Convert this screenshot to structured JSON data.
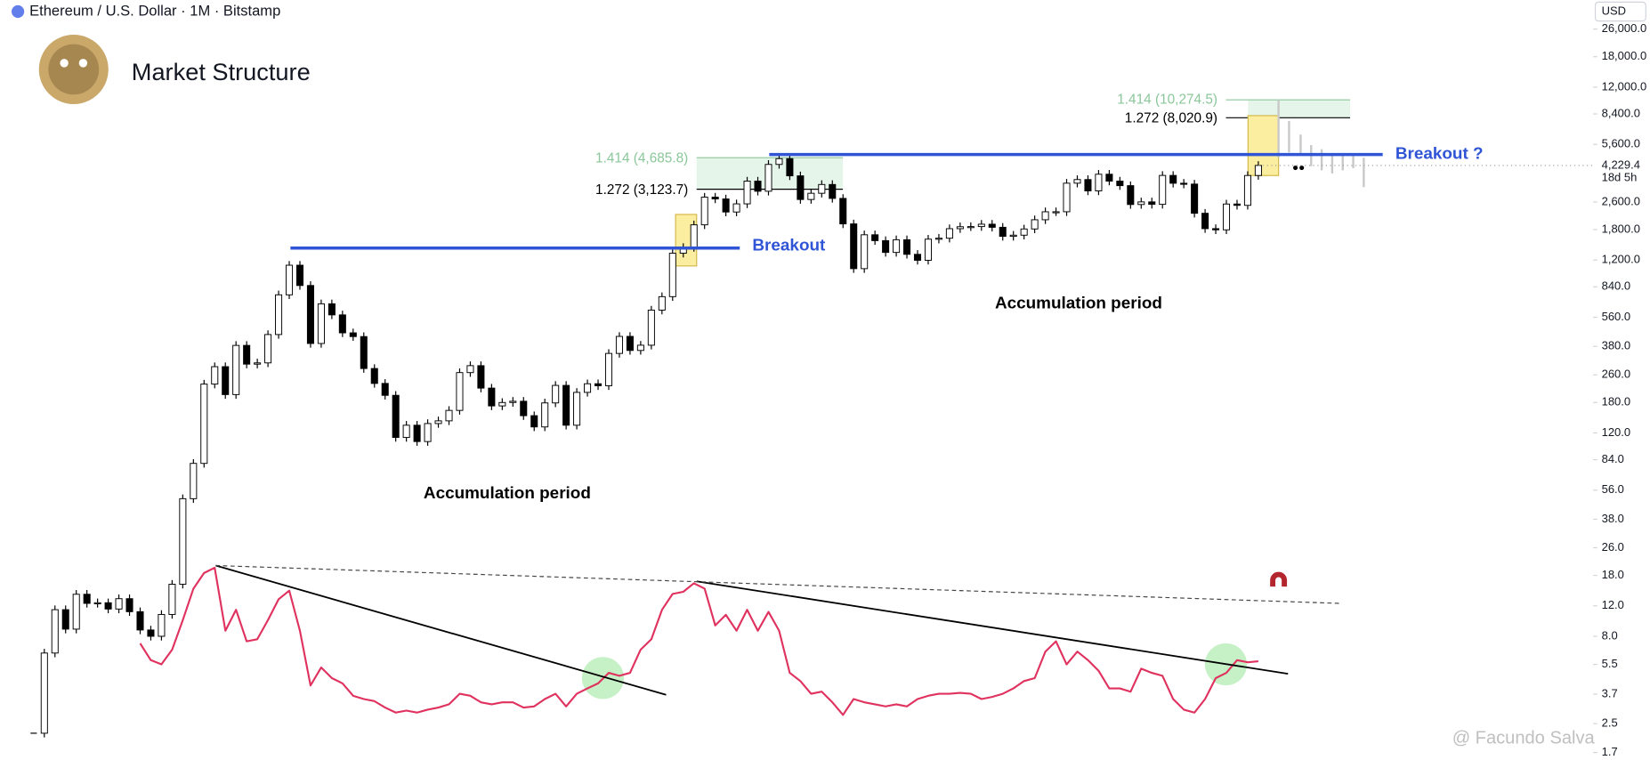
{
  "chart_data": {
    "type": "candlestick",
    "title": "Market Structure",
    "symbol": "Ethereum / U.S. Dollar · 1M · Bitstamp",
    "currency": "USD",
    "log_scale": true,
    "ylim": [
      1.54,
      38300
    ],
    "yticks": [
      {
        "value": 26000,
        "label": "26,000.0"
      },
      {
        "value": 18000,
        "label": "18,000.0"
      },
      {
        "value": 12000,
        "label": "12,000.0"
      },
      {
        "value": 8400,
        "label": "8,400.0"
      },
      {
        "value": 5600,
        "label": "5,600.0"
      },
      {
        "value": 2600,
        "label": "2,600.0"
      },
      {
        "value": 1800,
        "label": "1,800.0"
      },
      {
        "value": 1200,
        "label": "1,200.0"
      },
      {
        "value": 840,
        "label": "840.0"
      },
      {
        "value": 560,
        "label": "560.0"
      },
      {
        "value": 380,
        "label": "380.0"
      },
      {
        "value": 260,
        "label": "260.0"
      },
      {
        "value": 180,
        "label": "180.0"
      },
      {
        "value": 120,
        "label": "120.0"
      },
      {
        "value": 84,
        "label": "84.0"
      },
      {
        "value": 56,
        "label": "56.0"
      },
      {
        "value": 38,
        "label": "38.0"
      },
      {
        "value": 26,
        "label": "26.0"
      },
      {
        "value": 18,
        "label": "18.0"
      },
      {
        "value": 12,
        "label": "12.0"
      },
      {
        "value": 8,
        "label": "8.0"
      },
      5.5,
      3.7,
      2.5,
      1.7
    ],
    "last_price": {
      "value": 4229.4,
      "label": "4,229.4"
    },
    "countdown": "18d 5h",
    "y2lim": [
      10.4,
      340.8
    ],
    "series": [
      {
        "type": "candlestick",
        "up_color": "#ffffff",
        "down_color": "#000000",
        "values": [
          2.2,
          6.4,
          11.4,
          8.8,
          14,
          12.4,
          12.5,
          11.5,
          13.2,
          11.1,
          8.7,
          8.0,
          10.7,
          16,
          50,
          80,
          230,
          290,
          200,
          385,
          300,
          305,
          445,
          755,
          1120,
          855,
          395,
          670,
          578,
          455,
          433,
          283,
          232,
          198,
          113,
          133,
          107,
          136,
          141,
          162,
          268,
          294,
          218,
          172,
          180,
          183,
          151,
          130,
          179,
          226,
          133,
          206,
          231,
          225,
          346,
          434,
          360,
          386,
          616,
          737,
          1314,
          1419,
          1918,
          2773,
          2707,
          2275,
          2536,
          3433,
          3000,
          4288,
          4631,
          3683,
          2688,
          2920,
          3282,
          2727,
          1942,
          1070,
          1680,
          1554,
          1328,
          1572,
          1295,
          1196,
          1585,
          1605,
          1822,
          1870,
          1874,
          1934,
          1856,
          1645,
          1671,
          1815,
          2052,
          2282,
          2283,
          3340,
          3505,
          3014,
          3763,
          3434,
          3232,
          2514,
          2603,
          2520,
          3703,
          3337,
          3300,
          2237,
          1823,
          1794,
          2530,
          2486,
          3700,
          4229.4
        ]
      },
      {
        "type": "line",
        "axis": "y2",
        "color": "#e0325f",
        "values": [
          null,
          null,
          null,
          null,
          null,
          null,
          null,
          null,
          null,
          null,
          61.1,
          53.8,
          52.0,
          58.4,
          71.2,
          84.9,
          91.7,
          94.0,
          66.6,
          75.7,
          62.0,
          62.9,
          71.2,
          80.3,
          84.0,
          66.6,
          42.8,
          50.6,
          46.0,
          43.7,
          38.3,
          36.9,
          36.0,
          33.2,
          31.0,
          31.9,
          31.0,
          32.3,
          33.2,
          34.6,
          39.2,
          38.3,
          35.5,
          34.6,
          35.5,
          35.5,
          33.2,
          33.7,
          36.9,
          39.2,
          33.7,
          39.2,
          41.5,
          43.7,
          48.3,
          47.0,
          48.3,
          58.4,
          62.9,
          75.7,
          82.6,
          83.5,
          87.2,
          84.9,
          68.9,
          73.5,
          66.6,
          75.7,
          66.6,
          74.8,
          66.6,
          48.3,
          44.7,
          39.2,
          40.1,
          35.5,
          30.0,
          36.9,
          35.5,
          34.6,
          33.7,
          34.6,
          33.7,
          36.9,
          38.3,
          39.2,
          39.2,
          39.6,
          39.2,
          36.9,
          37.8,
          39.2,
          41.5,
          44.7,
          46.0,
          57.5,
          62.0,
          52.0,
          57.5,
          53.8,
          49.2,
          41.5,
          41.5,
          40.1,
          50.1,
          48.3,
          47.0,
          36.9,
          32.3,
          31.0,
          36.9,
          46.0,
          48.3,
          53.8,
          52.9,
          53.3
        ]
      }
    ],
    "annotations": {
      "breakout": "Breakout",
      "breakout_question": "Breakout ?",
      "accumulation_1": "Accumulation period",
      "accumulation_2": "Accumulation period",
      "fib_1414_a": "1.414 (4,685.8)",
      "fib_1272_a": "1.272 (3,123.7)",
      "fib_1414_b": "1.414 (10,274.5)",
      "fib_1272_b": "1.272 (8,020.9)",
      "watermark": "@ Facundo Salva"
    }
  }
}
